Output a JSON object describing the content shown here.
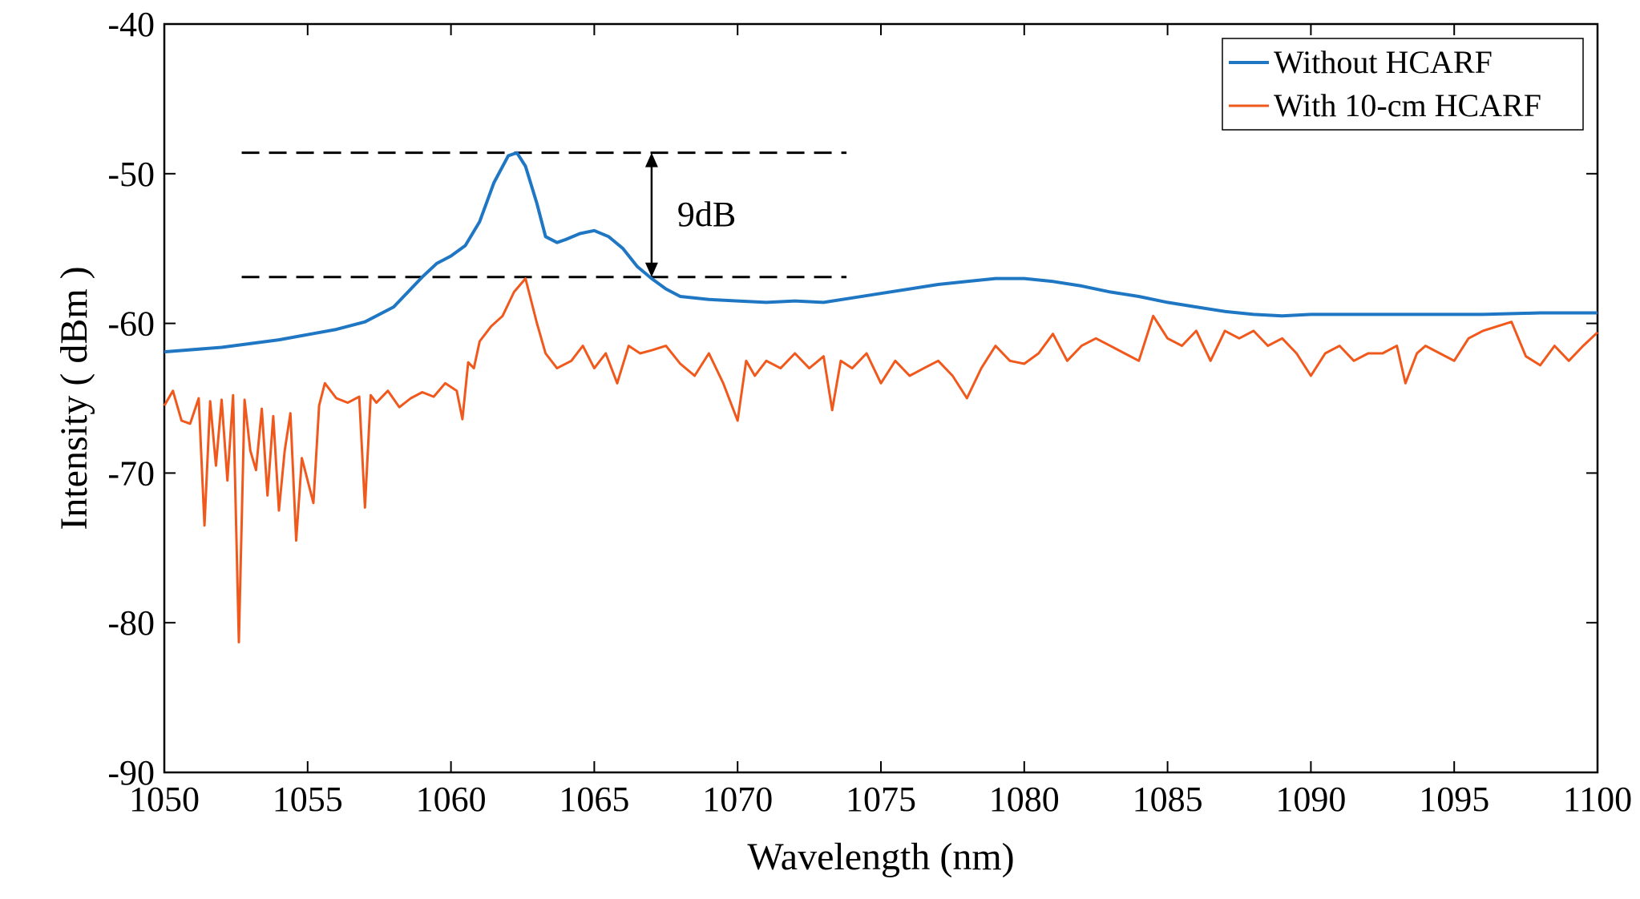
{
  "chart_data": {
    "type": "line",
    "title": "",
    "xlabel": "Wavelength (nm)",
    "ylabel": "Intensity ( dBm )",
    "xlim": [
      1050,
      1100
    ],
    "ylim": [
      -90,
      -40
    ],
    "xticks": [
      1050,
      1055,
      1060,
      1065,
      1070,
      1075,
      1080,
      1085,
      1090,
      1095,
      1100
    ],
    "yticks": [
      -90,
      -80,
      -70,
      -60,
      -50,
      -40
    ],
    "xtick_labels": [
      "1050",
      "1055",
      "1060",
      "1065",
      "1070",
      "1075",
      "1080",
      "1085",
      "1090",
      "1095",
      "1100"
    ],
    "ytick_labels": [
      "-90",
      "-80",
      "-70",
      "-60",
      "-50",
      "-40"
    ],
    "grid": false,
    "legend_position": "top-right",
    "series": [
      {
        "name": "Without HCARF",
        "color": "#1f77c4",
        "x": [
          1050,
          1052,
          1054,
          1056,
          1057,
          1058,
          1058.5,
          1059,
          1059.5,
          1060,
          1060.5,
          1061,
          1061.5,
          1062,
          1062.3,
          1062.6,
          1063,
          1063.3,
          1063.7,
          1064,
          1064.5,
          1065,
          1065.5,
          1066,
          1066.5,
          1067,
          1067.5,
          1068,
          1069,
          1070,
          1071,
          1072,
          1073,
          1074,
          1075,
          1076,
          1077,
          1078,
          1079,
          1080,
          1081,
          1082,
          1083,
          1084,
          1085,
          1086,
          1087,
          1088,
          1089,
          1090,
          1092,
          1094,
          1096,
          1098,
          1100
        ],
        "values": [
          -61.9,
          -61.6,
          -61.1,
          -60.4,
          -59.9,
          -58.9,
          -57.9,
          -56.9,
          -56.0,
          -55.5,
          -54.8,
          -53.2,
          -50.6,
          -48.8,
          -48.6,
          -49.5,
          -52.0,
          -54.2,
          -54.6,
          -54.4,
          -54.0,
          -53.8,
          -54.2,
          -55.0,
          -56.2,
          -57.0,
          -57.7,
          -58.2,
          -58.4,
          -58.5,
          -58.6,
          -58.5,
          -58.6,
          -58.3,
          -58.0,
          -57.7,
          -57.4,
          -57.2,
          -57.0,
          -57.0,
          -57.2,
          -57.5,
          -57.9,
          -58.2,
          -58.6,
          -58.9,
          -59.2,
          -59.4,
          -59.5,
          -59.4,
          -59.4,
          -59.4,
          -59.4,
          -59.3,
          -59.3
        ]
      },
      {
        "name": "With 10-cm HCARF",
        "color": "#f0581c",
        "x": [
          1050,
          1050.3,
          1050.6,
          1050.9,
          1051.2,
          1051.4,
          1051.6,
          1051.8,
          1052.0,
          1052.2,
          1052.4,
          1052.6,
          1052.8,
          1053.0,
          1053.2,
          1053.4,
          1053.6,
          1053.8,
          1054.0,
          1054.2,
          1054.4,
          1054.6,
          1054.8,
          1055.0,
          1055.2,
          1055.4,
          1055.6,
          1056.0,
          1056.4,
          1056.8,
          1057.0,
          1057.2,
          1057.4,
          1057.8,
          1058.2,
          1058.6,
          1059.0,
          1059.4,
          1059.8,
          1060.2,
          1060.4,
          1060.6,
          1060.8,
          1061.0,
          1061.4,
          1061.8,
          1062.2,
          1062.6,
          1063.0,
          1063.3,
          1063.7,
          1064.2,
          1064.6,
          1065.0,
          1065.4,
          1065.8,
          1066.2,
          1066.6,
          1067.0,
          1067.5,
          1068.0,
          1068.5,
          1069.0,
          1069.5,
          1070.0,
          1070.3,
          1070.6,
          1071.0,
          1071.5,
          1072.0,
          1072.5,
          1073.0,
          1073.3,
          1073.6,
          1074.0,
          1074.5,
          1075.0,
          1075.5,
          1076.0,
          1076.5,
          1077.0,
          1077.5,
          1078.0,
          1078.5,
          1079.0,
          1079.5,
          1080.0,
          1080.5,
          1081.0,
          1081.5,
          1082.0,
          1082.5,
          1083.0,
          1083.5,
          1084.0,
          1084.5,
          1085.0,
          1085.5,
          1086.0,
          1086.5,
          1087.0,
          1087.5,
          1088.0,
          1088.5,
          1089.0,
          1089.5,
          1090.0,
          1090.5,
          1091.0,
          1091.5,
          1092.0,
          1092.5,
          1093.0,
          1093.3,
          1093.7,
          1094.0,
          1094.5,
          1095.0,
          1095.5,
          1096.0,
          1096.5,
          1097.0,
          1097.5,
          1098.0,
          1098.5,
          1099.0,
          1099.5,
          1100.0
        ],
        "values": [
          -65.5,
          -64.5,
          -66.5,
          -66.7,
          -65.0,
          -73.5,
          -65.2,
          -69.5,
          -65.1,
          -70.5,
          -64.8,
          -81.3,
          -65.1,
          -68.5,
          -69.8,
          -65.7,
          -71.5,
          -66.2,
          -72.5,
          -68.5,
          -66.0,
          -74.5,
          -69.0,
          -70.5,
          -72.0,
          -65.5,
          -64.0,
          -65.0,
          -65.3,
          -64.9,
          -72.3,
          -64.8,
          -65.3,
          -64.5,
          -65.6,
          -65.0,
          -64.6,
          -64.9,
          -64.0,
          -64.5,
          -66.4,
          -62.6,
          -63.0,
          -61.2,
          -60.2,
          -59.5,
          -57.9,
          -57.0,
          -60.0,
          -62.0,
          -63.0,
          -62.5,
          -61.5,
          -63.0,
          -62.0,
          -64.0,
          -61.5,
          -62.0,
          -61.8,
          -61.5,
          -62.7,
          -63.5,
          -62.0,
          -64.0,
          -66.5,
          -62.5,
          -63.5,
          -62.5,
          -63.0,
          -62.0,
          -63.0,
          -62.2,
          -65.8,
          -62.5,
          -63.0,
          -62.0,
          -64.0,
          -62.5,
          -63.5,
          -63.0,
          -62.5,
          -63.5,
          -65.0,
          -63.0,
          -61.5,
          -62.5,
          -62.7,
          -62.0,
          -60.7,
          -62.5,
          -61.5,
          -61.0,
          -61.5,
          -62.0,
          -62.5,
          -59.5,
          -61.0,
          -61.5,
          -60.5,
          -62.5,
          -60.5,
          -61.0,
          -60.5,
          -61.5,
          -61.0,
          -62.0,
          -63.5,
          -62.0,
          -61.5,
          -62.5,
          -62.0,
          -62.0,
          -61.5,
          -64.0,
          -62.0,
          -61.5,
          -62.0,
          -62.5,
          -61.0,
          -60.5,
          -60.2,
          -59.9,
          -62.2,
          -62.8,
          -61.5,
          -62.5,
          -61.5,
          -60.6
        ]
      }
    ],
    "annotations": {
      "diff_label": "9dB",
      "upper_level": -48.6,
      "lower_level": -56.9,
      "line_x_range": [
        1052.7,
        1073.8
      ],
      "arrow_x": 1067.0
    }
  }
}
